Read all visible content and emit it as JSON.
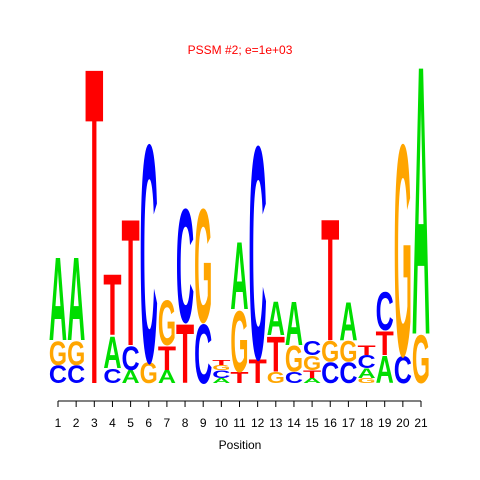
{
  "chart_data": {
    "type": "logo",
    "title": "PSSM #2; e=1e+03",
    "xlabel": "Position",
    "categories": [
      "1",
      "2",
      "3",
      "4",
      "5",
      "6",
      "7",
      "8",
      "9",
      "10",
      "11",
      "12",
      "13",
      "14",
      "15",
      "16",
      "17",
      "18",
      "19",
      "20",
      "21"
    ],
    "colors": {
      "A": "#00dd00",
      "C": "#0000ff",
      "G": "#ffa500",
      "T": "#ff0000"
    },
    "ylim": [
      0,
      2
    ],
    "columns": [
      {
        "letters": [
          "C",
          "G",
          "A"
        ],
        "heights": [
          0.11,
          0.15,
          0.52
        ]
      },
      {
        "letters": [
          "C",
          "G",
          "A"
        ],
        "heights": [
          0.11,
          0.15,
          0.52
        ]
      },
      {
        "letters": [
          "T"
        ],
        "heights": [
          1.98
        ]
      },
      {
        "letters": [
          "C",
          "A",
          "T"
        ],
        "heights": [
          0.09,
          0.2,
          0.38
        ]
      },
      {
        "letters": [
          "A",
          "C",
          "T"
        ],
        "heights": [
          0.08,
          0.15,
          0.79
        ]
      },
      {
        "letters": [
          "G",
          "C"
        ],
        "heights": [
          0.13,
          1.36
        ]
      },
      {
        "letters": [
          "A",
          "T",
          "G"
        ],
        "heights": [
          0.08,
          0.15,
          0.28
        ]
      },
      {
        "letters": [
          "T",
          "C"
        ],
        "heights": [
          0.37,
          0.71
        ]
      },
      {
        "letters": [
          "C",
          "G"
        ],
        "heights": [
          0.37,
          0.71
        ]
      },
      {
        "letters": [
          "A",
          "C",
          "G",
          "T"
        ],
        "heights": [
          0.03,
          0.05,
          0.03,
          0.03
        ]
      },
      {
        "letters": [
          "T",
          "G",
          "A"
        ],
        "heights": [
          0.07,
          0.38,
          0.42
        ]
      },
      {
        "letters": [
          "T",
          "C"
        ],
        "heights": [
          0.15,
          1.33
        ]
      },
      {
        "letters": [
          "G",
          "T",
          "A"
        ],
        "heights": [
          0.07,
          0.22,
          0.21
        ]
      },
      {
        "letters": [
          "C",
          "G",
          "A"
        ],
        "heights": [
          0.07,
          0.16,
          0.27
        ]
      },
      {
        "letters": [
          "A",
          "T",
          "G",
          "C"
        ],
        "heights": [
          0.03,
          0.05,
          0.09,
          0.09
        ]
      },
      {
        "letters": [
          "C",
          "G",
          "T"
        ],
        "heights": [
          0.13,
          0.13,
          0.76
        ]
      },
      {
        "letters": [
          "C",
          "G",
          "A"
        ],
        "heights": [
          0.13,
          0.13,
          0.24
        ]
      },
      {
        "letters": [
          "G",
          "A",
          "C",
          "T"
        ],
        "heights": [
          0.03,
          0.06,
          0.08,
          0.06
        ]
      },
      {
        "letters": [
          "A",
          "T",
          "C"
        ],
        "heights": [
          0.17,
          0.15,
          0.24
        ]
      },
      {
        "letters": [
          "C",
          "G"
        ],
        "heights": [
          0.17,
          1.32
        ]
      },
      {
        "letters": [
          "G",
          "A"
        ],
        "heights": [
          0.3,
          1.68
        ]
      }
    ]
  }
}
